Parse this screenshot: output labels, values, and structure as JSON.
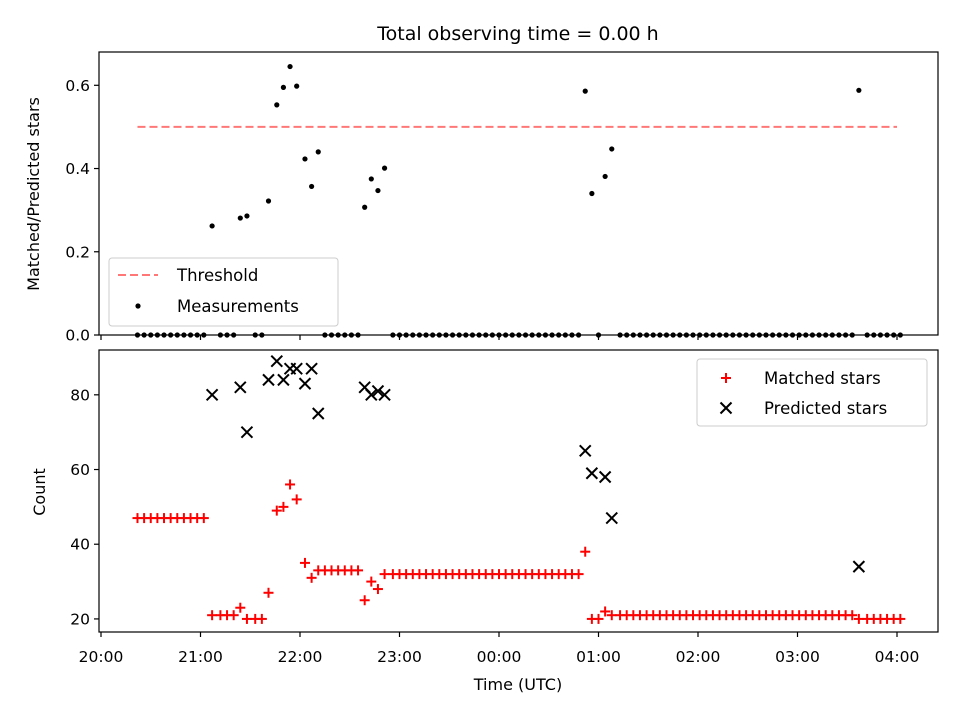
{
  "title": "Total observing time = 0.00 h",
  "chart_data": [
    {
      "type": "scatter",
      "panel": "top",
      "ylabel": "Matched/Predicted stars",
      "xlabel": "",
      "ylim": [
        0,
        0.68
      ],
      "yticks": [
        0.0,
        0.2,
        0.4,
        0.6
      ],
      "ytick_labels": [
        "0.0",
        "0.2",
        "0.4",
        "0.6"
      ],
      "legend_position": "lower-left",
      "threshold": {
        "name": "Threshold",
        "value": 0.5,
        "x_start": "20:22",
        "x_end": "04:00",
        "color": "#ff7777"
      },
      "series": [
        {
          "name": "Measurements",
          "color": "#000000",
          "marker": "dot",
          "points": [
            [
              "20:22",
              0
            ],
            [
              "20:26",
              0
            ],
            [
              "20:30",
              0
            ],
            [
              "20:34",
              0
            ],
            [
              "20:38",
              0
            ],
            [
              "20:42",
              0
            ],
            [
              "20:46",
              0
            ],
            [
              "20:50",
              0
            ],
            [
              "20:54",
              0
            ],
            [
              "20:58",
              0
            ],
            [
              "21:02",
              0
            ],
            [
              "21:07",
              0.262
            ],
            [
              "21:12",
              0
            ],
            [
              "21:16",
              0
            ],
            [
              "21:20",
              0
            ],
            [
              "21:24",
              0.281
            ],
            [
              "21:28",
              0.286
            ],
            [
              "21:33",
              0
            ],
            [
              "21:37",
              0
            ],
            [
              "21:41",
              0.322
            ],
            [
              "21:46",
              0.553
            ],
            [
              "21:50",
              0.595
            ],
            [
              "21:54",
              0.645
            ],
            [
              "21:58",
              0.598
            ],
            [
              "22:03",
              0.423
            ],
            [
              "22:07",
              0.357
            ],
            [
              "22:11",
              0.44
            ],
            [
              "22:15",
              0
            ],
            [
              "22:19",
              0
            ],
            [
              "22:23",
              0
            ],
            [
              "22:27",
              0
            ],
            [
              "22:31",
              0
            ],
            [
              "22:35",
              0
            ],
            [
              "22:39",
              0.307
            ],
            [
              "22:43",
              0.375
            ],
            [
              "22:47",
              0.347
            ],
            [
              "22:51",
              0.401
            ],
            [
              "22:56",
              0
            ],
            [
              "23:00",
              0
            ],
            [
              "23:04",
              0
            ],
            [
              "23:08",
              0
            ],
            [
              "23:12",
              0
            ],
            [
              "23:16",
              0
            ],
            [
              "23:20",
              0
            ],
            [
              "23:24",
              0
            ],
            [
              "23:28",
              0
            ],
            [
              "23:32",
              0
            ],
            [
              "23:36",
              0
            ],
            [
              "23:40",
              0
            ],
            [
              "23:44",
              0
            ],
            [
              "23:48",
              0
            ],
            [
              "23:52",
              0
            ],
            [
              "23:56",
              0
            ],
            [
              "00:00",
              0
            ],
            [
              "00:04",
              0
            ],
            [
              "00:08",
              0
            ],
            [
              "00:12",
              0
            ],
            [
              "00:16",
              0
            ],
            [
              "00:20",
              0
            ],
            [
              "00:24",
              0
            ],
            [
              "00:28",
              0
            ],
            [
              "00:32",
              0
            ],
            [
              "00:36",
              0
            ],
            [
              "00:40",
              0
            ],
            [
              "00:44",
              0
            ],
            [
              "00:48",
              0
            ],
            [
              "00:52",
              0.586
            ],
            [
              "00:56",
              0.34
            ],
            [
              "01:00",
              0
            ],
            [
              "01:04",
              0.381
            ],
            [
              "01:08",
              0.447
            ],
            [
              "01:13",
              0
            ],
            [
              "01:17",
              0
            ],
            [
              "01:21",
              0
            ],
            [
              "01:25",
              0
            ],
            [
              "01:29",
              0
            ],
            [
              "01:33",
              0
            ],
            [
              "01:37",
              0
            ],
            [
              "01:41",
              0
            ],
            [
              "01:45",
              0
            ],
            [
              "01:49",
              0
            ],
            [
              "01:53",
              0
            ],
            [
              "01:57",
              0
            ],
            [
              "02:01",
              0
            ],
            [
              "02:05",
              0
            ],
            [
              "02:09",
              0
            ],
            [
              "02:13",
              0
            ],
            [
              "02:17",
              0
            ],
            [
              "02:21",
              0
            ],
            [
              "02:25",
              0
            ],
            [
              "02:29",
              0
            ],
            [
              "02:33",
              0
            ],
            [
              "02:37",
              0
            ],
            [
              "02:41",
              0
            ],
            [
              "02:45",
              0
            ],
            [
              "02:49",
              0
            ],
            [
              "02:53",
              0
            ],
            [
              "02:57",
              0
            ],
            [
              "03:01",
              0
            ],
            [
              "03:05",
              0
            ],
            [
              "03:09",
              0
            ],
            [
              "03:13",
              0
            ],
            [
              "03:17",
              0
            ],
            [
              "03:21",
              0
            ],
            [
              "03:25",
              0
            ],
            [
              "03:29",
              0
            ],
            [
              "03:33",
              0
            ],
            [
              "03:37",
              0.588
            ],
            [
              "03:42",
              0
            ],
            [
              "03:46",
              0
            ],
            [
              "03:50",
              0
            ],
            [
              "03:54",
              0
            ],
            [
              "03:58",
              0
            ],
            [
              "04:02",
              0
            ]
          ]
        }
      ]
    },
    {
      "type": "scatter",
      "panel": "bottom",
      "ylabel": "Count",
      "xlabel": "Time (UTC)",
      "ylim": [
        16.5,
        92
      ],
      "yticks": [
        20,
        40,
        60,
        80
      ],
      "ytick_labels": [
        "20",
        "40",
        "60",
        "80"
      ],
      "xlim": [
        "20:00",
        "04:00"
      ],
      "xticks": [
        "20:00",
        "21:00",
        "22:00",
        "23:00",
        "00:00",
        "01:00",
        "02:00",
        "03:00",
        "04:00"
      ],
      "legend_position": "top-right",
      "series": [
        {
          "name": "Matched stars",
          "color": "#ff0000",
          "marker": "plus",
          "points": [
            [
              "20:22",
              47
            ],
            [
              "20:26",
              47
            ],
            [
              "20:30",
              47
            ],
            [
              "20:34",
              47
            ],
            [
              "20:38",
              47
            ],
            [
              "20:42",
              47
            ],
            [
              "20:46",
              47
            ],
            [
              "20:50",
              47
            ],
            [
              "20:54",
              47
            ],
            [
              "20:58",
              47
            ],
            [
              "21:02",
              47
            ],
            [
              "21:07",
              21
            ],
            [
              "21:12",
              21
            ],
            [
              "21:16",
              21
            ],
            [
              "21:20",
              21
            ],
            [
              "21:24",
              23
            ],
            [
              "21:28",
              20
            ],
            [
              "21:33",
              20
            ],
            [
              "21:37",
              20
            ],
            [
              "21:41",
              27
            ],
            [
              "21:46",
              49
            ],
            [
              "21:50",
              50
            ],
            [
              "21:54",
              56
            ],
            [
              "21:58",
              52
            ],
            [
              "22:03",
              35
            ],
            [
              "22:07",
              31
            ],
            [
              "22:11",
              33
            ],
            [
              "22:15",
              33
            ],
            [
              "22:19",
              33
            ],
            [
              "22:23",
              33
            ],
            [
              "22:27",
              33
            ],
            [
              "22:31",
              33
            ],
            [
              "22:35",
              33
            ],
            [
              "22:39",
              25
            ],
            [
              "22:43",
              30
            ],
            [
              "22:47",
              28
            ],
            [
              "22:51",
              32
            ],
            [
              "22:56",
              32
            ],
            [
              "23:00",
              32
            ],
            [
              "23:04",
              32
            ],
            [
              "23:08",
              32
            ],
            [
              "23:12",
              32
            ],
            [
              "23:16",
              32
            ],
            [
              "23:20",
              32
            ],
            [
              "23:24",
              32
            ],
            [
              "23:28",
              32
            ],
            [
              "23:32",
              32
            ],
            [
              "23:36",
              32
            ],
            [
              "23:40",
              32
            ],
            [
              "23:44",
              32
            ],
            [
              "23:48",
              32
            ],
            [
              "23:52",
              32
            ],
            [
              "23:56",
              32
            ],
            [
              "00:00",
              32
            ],
            [
              "00:04",
              32
            ],
            [
              "00:08",
              32
            ],
            [
              "00:12",
              32
            ],
            [
              "00:16",
              32
            ],
            [
              "00:20",
              32
            ],
            [
              "00:24",
              32
            ],
            [
              "00:28",
              32
            ],
            [
              "00:32",
              32
            ],
            [
              "00:36",
              32
            ],
            [
              "00:40",
              32
            ],
            [
              "00:44",
              32
            ],
            [
              "00:48",
              32
            ],
            [
              "00:52",
              38
            ],
            [
              "00:56",
              20
            ],
            [
              "01:00",
              20
            ],
            [
              "01:04",
              22
            ],
            [
              "01:08",
              21
            ],
            [
              "01:13",
              21
            ],
            [
              "01:17",
              21
            ],
            [
              "01:21",
              21
            ],
            [
              "01:25",
              21
            ],
            [
              "01:29",
              21
            ],
            [
              "01:33",
              21
            ],
            [
              "01:37",
              21
            ],
            [
              "01:41",
              21
            ],
            [
              "01:45",
              21
            ],
            [
              "01:49",
              21
            ],
            [
              "01:53",
              21
            ],
            [
              "01:57",
              21
            ],
            [
              "02:01",
              21
            ],
            [
              "02:05",
              21
            ],
            [
              "02:09",
              21
            ],
            [
              "02:13",
              21
            ],
            [
              "02:17",
              21
            ],
            [
              "02:21",
              21
            ],
            [
              "02:25",
              21
            ],
            [
              "02:29",
              21
            ],
            [
              "02:33",
              21
            ],
            [
              "02:37",
              21
            ],
            [
              "02:41",
              21
            ],
            [
              "02:45",
              21
            ],
            [
              "02:49",
              21
            ],
            [
              "02:53",
              21
            ],
            [
              "02:57",
              21
            ],
            [
              "03:01",
              21
            ],
            [
              "03:05",
              21
            ],
            [
              "03:09",
              21
            ],
            [
              "03:13",
              21
            ],
            [
              "03:17",
              21
            ],
            [
              "03:21",
              21
            ],
            [
              "03:25",
              21
            ],
            [
              "03:29",
              21
            ],
            [
              "03:33",
              21
            ],
            [
              "03:37",
              20
            ],
            [
              "03:42",
              20
            ],
            [
              "03:46",
              20
            ],
            [
              "03:50",
              20
            ],
            [
              "03:54",
              20
            ],
            [
              "03:58",
              20
            ],
            [
              "04:02",
              20
            ]
          ]
        },
        {
          "name": "Predicted stars",
          "color": "#000000",
          "marker": "x",
          "points": [
            [
              "21:07",
              80
            ],
            [
              "21:24",
              82
            ],
            [
              "21:28",
              70
            ],
            [
              "21:41",
              84
            ],
            [
              "21:46",
              89
            ],
            [
              "21:50",
              84
            ],
            [
              "21:54",
              87
            ],
            [
              "21:58",
              87
            ],
            [
              "22:03",
              83
            ],
            [
              "22:07",
              87
            ],
            [
              "22:11",
              75
            ],
            [
              "22:39",
              82
            ],
            [
              "22:43",
              80
            ],
            [
              "22:47",
              81
            ],
            [
              "22:51",
              80
            ],
            [
              "00:52",
              65
            ],
            [
              "00:56",
              59
            ],
            [
              "01:04",
              58
            ],
            [
              "01:08",
              47
            ],
            [
              "03:37",
              34
            ]
          ]
        }
      ]
    }
  ]
}
